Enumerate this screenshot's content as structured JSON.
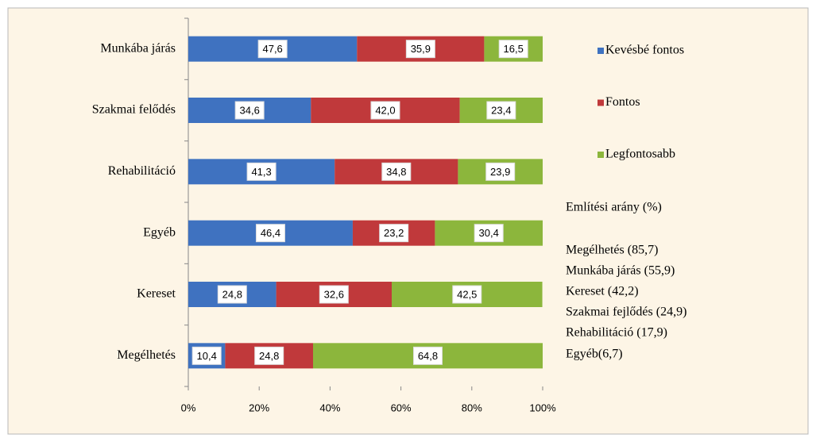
{
  "chart_data": {
    "type": "stacked-barh",
    "categories": [
      "Munkába járás",
      "Szakmai felődés",
      "Rehabilitáció",
      "Egyéb",
      "Kereset",
      "Megélhetés"
    ],
    "series": [
      {
        "name": "Kevésbé fontos",
        "color": "#3f72c0",
        "values": [
          47.6,
          34.6,
          41.3,
          46.4,
          24.8,
          10.4
        ],
        "value_labels": [
          "47,6",
          "34,6",
          "41,3",
          "46,4",
          "24,8",
          "10,4"
        ]
      },
      {
        "name": "Fontos",
        "color": "#c0393b",
        "values": [
          35.9,
          42.0,
          34.8,
          23.2,
          32.6,
          24.8
        ],
        "value_labels": [
          "35,9",
          "42,0",
          "34,8",
          "23,2",
          "32,6",
          "24,8"
        ]
      },
      {
        "name": "Legfontosabb",
        "color": "#8cb63c",
        "values": [
          16.5,
          23.4,
          23.9,
          30.4,
          42.5,
          64.8
        ],
        "value_labels": [
          "16,5",
          "23,4",
          "23,9",
          "30,4",
          "42,5",
          "64,8"
        ]
      }
    ],
    "xlim": [
      0,
      100
    ],
    "xticks": [
      {
        "value": 0,
        "label": "0%"
      },
      {
        "value": 20,
        "label": "20%"
      },
      {
        "value": 40,
        "label": "40%"
      },
      {
        "value": 60,
        "label": "60%"
      },
      {
        "value": 80,
        "label": "80%"
      },
      {
        "value": 100,
        "label": "100%"
      }
    ],
    "legend": "right",
    "annotations": [
      "Említési arány  (%)",
      "Megélhetés  (85,7)",
      "Munkába járás  (55,9)",
      "Kereset  (42,2)",
      "Szakmai fejlődés  (24,9)",
      "Rehabilitáció  (17,9)",
      "Egyéb(6,7)"
    ]
  }
}
